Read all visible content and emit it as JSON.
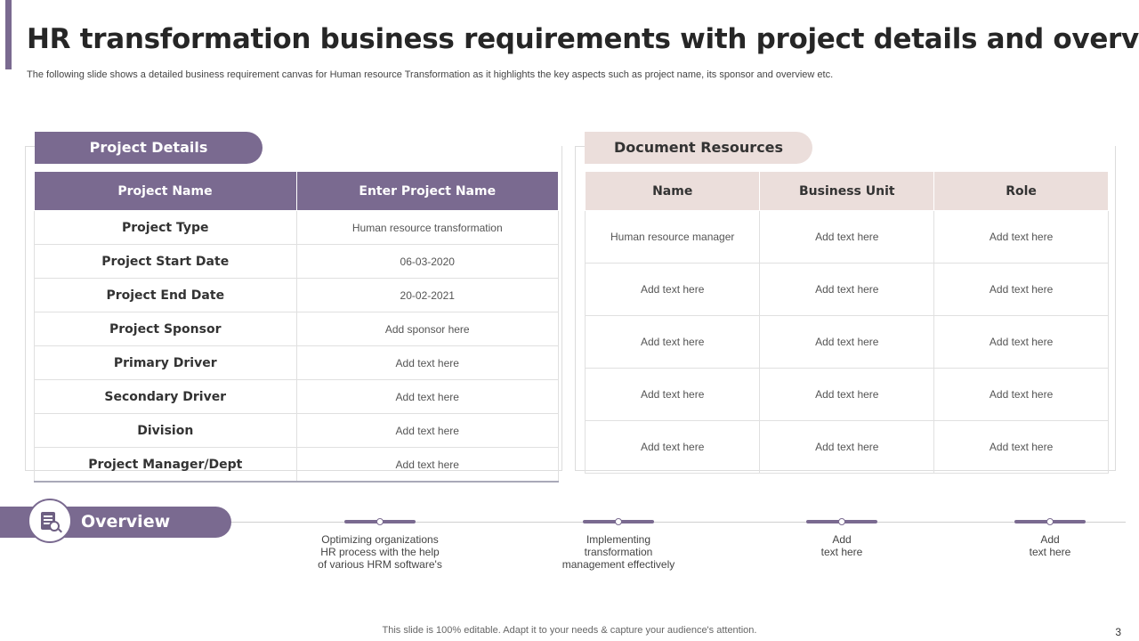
{
  "header": {
    "title": "HR transformation business requirements with project details and overview",
    "subtitle": "The following slide shows a detailed business requirement canvas for Human resource Transformation as it highlights the key aspects such as project name, its sponsor and overview etc."
  },
  "project_details": {
    "title": "Project Details",
    "header_label": "Project Name",
    "header_value": "Enter Project Name",
    "rows": [
      {
        "label": "Project Type",
        "value": "Human resource transformation"
      },
      {
        "label": "Project Start Date",
        "value": "06-03-2020"
      },
      {
        "label": "Project End Date",
        "value": "20-02-2021"
      },
      {
        "label": "Project Sponsor",
        "value": "Add sponsor here"
      },
      {
        "label": "Primary Driver",
        "value": "Add text here"
      },
      {
        "label": "Secondary Driver",
        "value": "Add text here"
      },
      {
        "label": "Division",
        "value": "Add text here"
      },
      {
        "label": "Project Manager/Dept",
        "value": "Add text here"
      }
    ]
  },
  "document_resources": {
    "title": "Document Resources",
    "columns": [
      "Name",
      "Business Unit",
      "Role"
    ],
    "rows": [
      [
        "Human resource  manager",
        "Add text here",
        "Add text here"
      ],
      [
        "Add text here",
        "Add text here",
        "Add text here"
      ],
      [
        "Add text here",
        "Add text here",
        "Add text here"
      ],
      [
        "Add text here",
        "Add text here",
        "Add text here"
      ],
      [
        "Add text here",
        "Add text here",
        "Add text here"
      ]
    ]
  },
  "overview": {
    "title": "Overview",
    "icon": "document-search-icon",
    "items": [
      "Optimizing organizations\nHR process with the help\nof various HRM software's",
      "Implementing\ntransformation\nmanagement effectively",
      "Add\ntext here",
      "Add\ntext here"
    ]
  },
  "footer": {
    "note": "This slide is 100% editable. Adapt it to your needs & capture your audience's attention.",
    "page_number": "3"
  },
  "colors": {
    "accent": "#7a6a90",
    "accent_light": "#ebdedb"
  }
}
